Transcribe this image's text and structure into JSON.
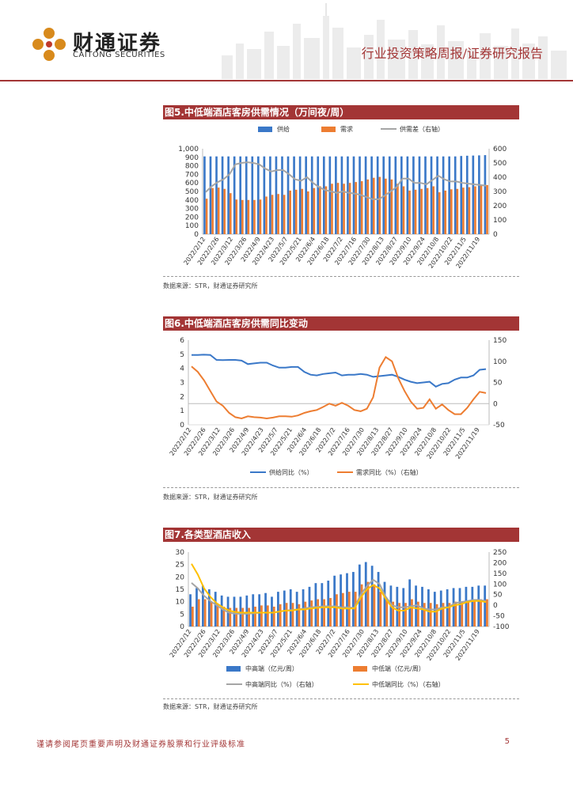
{
  "header": {
    "logo_cn": "财通证券",
    "logo_en": "CAITONG SECURITIES",
    "report_type": "行业投资策略周报/证券研究报告"
  },
  "footer": {
    "disclaimer": "谨请参阅尾页重要声明及财通证券股票和行业评级标准",
    "page": "5"
  },
  "figures": [
    {
      "title": "图5.中低端酒店客房供需情况（万间夜/周）",
      "source": "数据来源：STR，财通证券研究所"
    },
    {
      "title": "图6.中低端酒店客房供需同比变动",
      "source": "数据来源：STR，财通证券研究所"
    },
    {
      "title": "图7.各类型酒店收入",
      "source": "数据来源：STR，财通证券研究所"
    }
  ],
  "colors": {
    "brand": "#a33535",
    "blue": "#3a78c8",
    "orange": "#ed7d31",
    "gray": "#a5a5a5",
    "gold": "#ffc000"
  },
  "chart_data": [
    {
      "type": "bar",
      "title": "图5.中低端酒店客房供需情况（万间夜/周）",
      "x_tick_labels": [
        "2022/2/12",
        "2022/2/26",
        "2022/3/12",
        "2022/3/26",
        "2022/4/9",
        "2022/4/23",
        "2022/5/7",
        "2022/5/21",
        "2022/6/4",
        "2022/6/18",
        "2022/7/2",
        "2022/7/16",
        "2022/7/30",
        "2022/8/13",
        "2022/8/27",
        "2022/9/10",
        "2022/9/24",
        "2022/10/8",
        "2022/10/22",
        "2022/11/5",
        "2022/11/19"
      ],
      "ylim_left": [
        0,
        1000
      ],
      "yticks_left": [
        "0",
        "100",
        "200",
        "300",
        "400",
        "500",
        "600",
        "700",
        "800",
        "900",
        "1,000"
      ],
      "ylim_right": [
        0,
        600
      ],
      "yticks_right": [
        "0",
        "100",
        "200",
        "300",
        "400",
        "500",
        "600"
      ],
      "series": [
        {
          "name": "供给",
          "kind": "bar",
          "axis": "left",
          "values": [
            910,
            910,
            910,
            910,
            910,
            910,
            910,
            910,
            910,
            910,
            910,
            910,
            910,
            910,
            910,
            910,
            910,
            910,
            910,
            910,
            910,
            910,
            910,
            910,
            910,
            910,
            910,
            910,
            910,
            910,
            910,
            910,
            910,
            910,
            910,
            910,
            910,
            910,
            910,
            910,
            910,
            910,
            910,
            915,
            918,
            920,
            922,
            925
          ]
        },
        {
          "name": "需求",
          "kind": "bar",
          "axis": "left",
          "values": [
            415,
            540,
            545,
            530,
            480,
            405,
            400,
            400,
            400,
            405,
            440,
            460,
            470,
            460,
            510,
            520,
            530,
            500,
            540,
            560,
            560,
            590,
            600,
            590,
            600,
            610,
            620,
            640,
            660,
            670,
            650,
            640,
            590,
            560,
            510,
            520,
            530,
            540,
            560,
            490,
            510,
            525,
            530,
            545,
            550,
            560,
            570,
            575
          ]
        },
        {
          "name": "供需差（右轴）",
          "kind": "line",
          "axis": "right",
          "values": [
            295,
            335,
            365,
            385,
            420,
            490,
            500,
            505,
            500,
            490,
            460,
            440,
            450,
            450,
            420,
            385,
            375,
            400,
            360,
            330,
            310,
            300,
            290,
            300,
            290,
            285,
            275,
            260,
            245,
            245,
            270,
            300,
            330,
            390,
            390,
            360,
            360,
            350,
            380,
            410,
            385,
            370,
            370,
            360,
            355,
            350,
            345,
            340
          ]
        }
      ]
    },
    {
      "type": "line",
      "title": "图6.中低端酒店客房供需同比变动",
      "x_tick_labels": [
        "2022/2/12",
        "2022/2/26",
        "2022/3/12",
        "2022/3/26",
        "2022/4/9",
        "2022/4/23",
        "2022/5/7",
        "2022/5/21",
        "2022/6/4",
        "2022/6/18",
        "2022/7/2",
        "2022/7/16",
        "2022/7/30",
        "2022/8/13",
        "2022/8/27",
        "2022/9/10",
        "2022/9/24",
        "2022/10/8",
        "2022/10/22",
        "2022/11/5",
        "2022/11/19"
      ],
      "ylim_left": [
        0,
        6
      ],
      "yticks_left": [
        "0",
        "1",
        "2",
        "3",
        "4",
        "5",
        "6"
      ],
      "ylim_right": [
        -50,
        150
      ],
      "yticks_right": [
        "-50",
        "0",
        "50",
        "100",
        "150"
      ],
      "series": [
        {
          "name": "供给同比（%）",
          "axis": "left",
          "values": [
            4.95,
            4.95,
            4.97,
            4.95,
            4.6,
            4.58,
            4.6,
            4.6,
            4.55,
            4.3,
            4.35,
            4.4,
            4.4,
            4.2,
            4.05,
            4.05,
            4.1,
            4.1,
            3.75,
            3.55,
            3.5,
            3.6,
            3.65,
            3.7,
            3.5,
            3.55,
            3.55,
            3.6,
            3.55,
            3.4,
            3.45,
            3.5,
            3.55,
            3.4,
            3.2,
            3.05,
            2.95,
            3.0,
            3.05,
            2.7,
            2.9,
            2.95,
            3.2,
            3.35,
            3.35,
            3.5,
            3.9,
            3.95
          ]
        },
        {
          "name": "需求同比（%）（右轴）",
          "axis": "right",
          "values": [
            88,
            75,
            55,
            30,
            5,
            -5,
            -22,
            -32,
            -35,
            -30,
            -32,
            -33,
            -35,
            -33,
            -30,
            -30,
            -31,
            -28,
            -22,
            -18,
            -15,
            -8,
            0,
            -5,
            2,
            -5,
            -15,
            -18,
            -12,
            15,
            85,
            110,
            100,
            60,
            30,
            5,
            -12,
            -10,
            10,
            -12,
            -2,
            -15,
            -25,
            -25,
            -10,
            10,
            28,
            25
          ]
        }
      ]
    },
    {
      "type": "bar",
      "title": "图7.各类型酒店收入",
      "x_tick_labels": [
        "2022/2/12",
        "2022/2/26",
        "2022/3/12",
        "2022/3/26",
        "2022/4/9",
        "2022/4/23",
        "2022/5/7",
        "2022/5/21",
        "2022/6/4",
        "2022/6/18",
        "2022/7/2",
        "2022/7/16",
        "2022/7/30",
        "2022/8/13",
        "2022/8/27",
        "2022/9/10",
        "2022/9/24",
        "2022/10/8",
        "2022/10/22",
        "2022/11/5",
        "2022/11/19"
      ],
      "ylim_left": [
        0,
        30
      ],
      "yticks_left": [
        "0",
        "5",
        "10",
        "15",
        "20",
        "25",
        "30"
      ],
      "ylim_right": [
        -100,
        250
      ],
      "yticks_right": [
        "-100",
        "-50",
        "0",
        "50",
        "100",
        "150",
        "200",
        "250"
      ],
      "series": [
        {
          "name": "中高端（亿元/周）",
          "kind": "bar",
          "axis": "left",
          "values": [
            13,
            15.5,
            16.5,
            15,
            14,
            12.5,
            12,
            12,
            12,
            12.5,
            13,
            13,
            13.5,
            12,
            14,
            14.5,
            15,
            14,
            15,
            16,
            17.5,
            17.5,
            18.5,
            20.5,
            21,
            21.5,
            22,
            25,
            26,
            24.5,
            22,
            18,
            16.5,
            16,
            15.5,
            19,
            16.5,
            16,
            15,
            14,
            14.5,
            15,
            15.5,
            15.5,
            16,
            16,
            16.5,
            16.5
          ]
        },
        {
          "name": "中低端（亿元/周）",
          "kind": "bar",
          "axis": "left",
          "values": [
            8,
            11,
            11,
            10,
            9,
            8,
            7.5,
            7.5,
            7.5,
            7.5,
            8,
            8.5,
            8.5,
            8,
            9,
            9.5,
            9.5,
            9,
            10,
            10.5,
            11,
            11,
            11.5,
            13,
            13.5,
            14,
            14,
            17,
            18,
            17,
            14,
            11,
            10,
            9.5,
            9.5,
            11,
            10,
            9.5,
            9.5,
            9,
            9.5,
            9.5,
            10,
            10,
            10.5,
            11,
            11,
            11
          ]
        },
        {
          "name": "中高端同比（%）（右轴）",
          "kind": "line",
          "axis": "right",
          "values": [
            105,
            80,
            45,
            20,
            0,
            -20,
            -35,
            -40,
            -40,
            -40,
            -38,
            -35,
            -35,
            -35,
            -30,
            -25,
            -22,
            -20,
            -15,
            -10,
            -8,
            -5,
            -5,
            -5,
            -10,
            -10,
            -12,
            50,
            90,
            120,
            100,
            40,
            0,
            -10,
            -10,
            -5,
            0,
            -15,
            -20,
            -20,
            -10,
            -10,
            10,
            15,
            20,
            25,
            25,
            20
          ]
        },
        {
          "name": "中低端同比（%）（右轴）",
          "kind": "line",
          "axis": "right",
          "values": [
            195,
            145,
            80,
            40,
            10,
            -10,
            -25,
            -32,
            -35,
            -35,
            -35,
            -35,
            -35,
            -35,
            -30,
            -25,
            -25,
            -20,
            -20,
            -15,
            -12,
            -10,
            -10,
            -10,
            -15,
            -15,
            -15,
            35,
            75,
            95,
            80,
            30,
            -10,
            -25,
            -25,
            -10,
            -15,
            -20,
            -30,
            -30,
            -15,
            -10,
            0,
            5,
            15,
            20,
            20,
            15
          ]
        }
      ]
    }
  ]
}
